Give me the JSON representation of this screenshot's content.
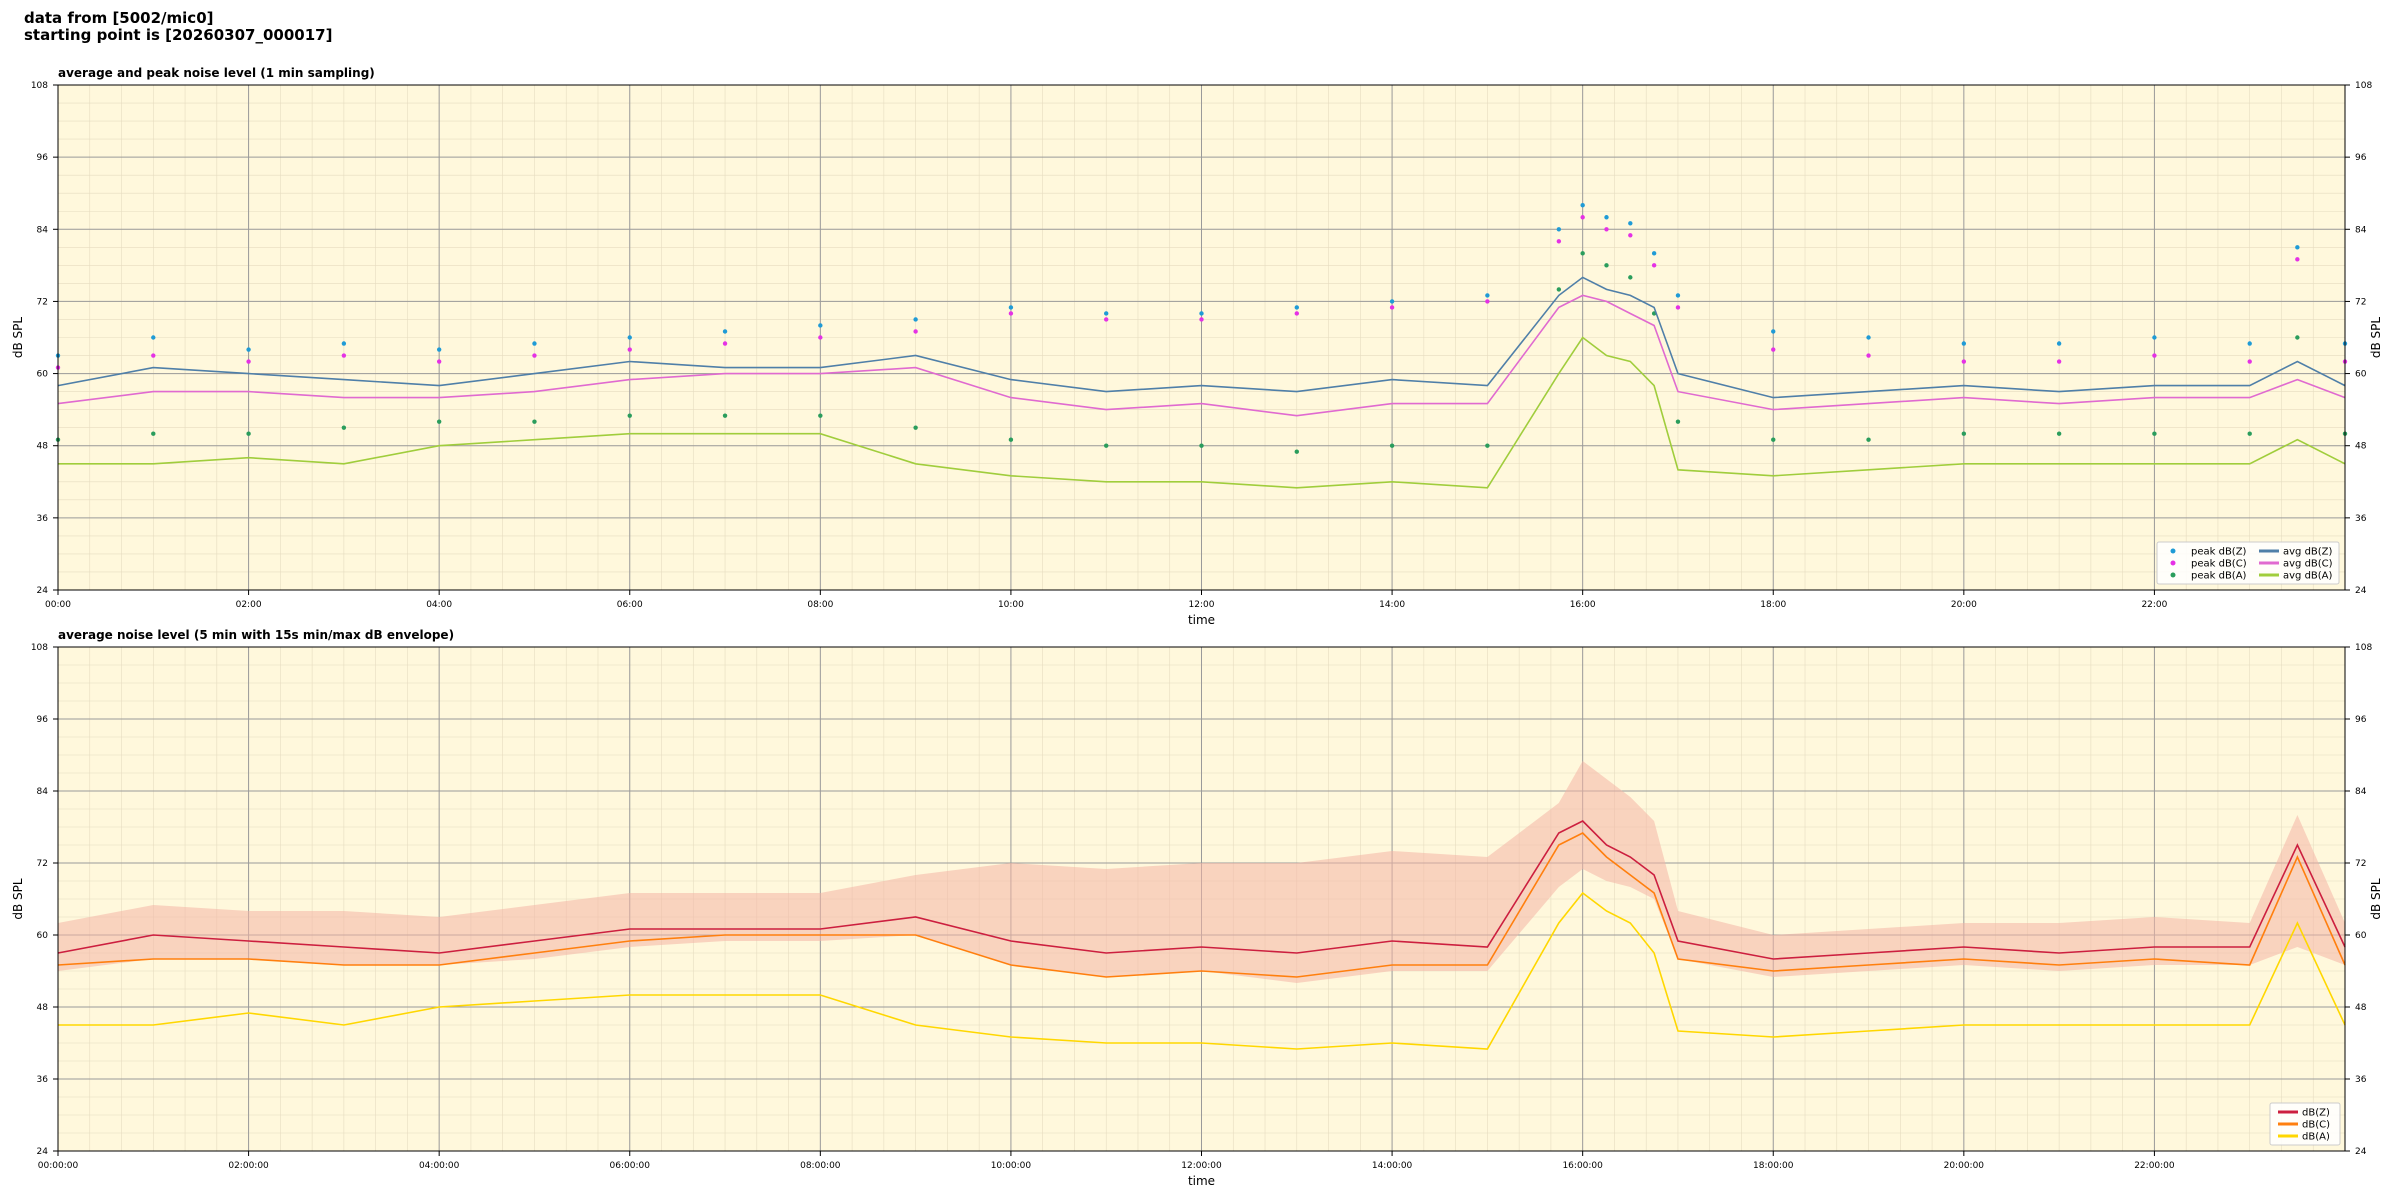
{
  "header": {
    "line1": "data from [5002/mic0]",
    "line2": "starting point is [20260307_000017]"
  },
  "chart_data": [
    {
      "type": "line",
      "title": "average and peak noise level (1 min sampling)",
      "xlabel": "time",
      "ylabel": "dB SPL",
      "xlim_hours": [
        0,
        24
      ],
      "ylim": [
        24,
        108
      ],
      "yticks": [
        24,
        36,
        48,
        60,
        72,
        84,
        96,
        108
      ],
      "xtick_labels": [
        "00:00",
        "02:00",
        "04:00",
        "06:00",
        "08:00",
        "10:00",
        "12:00",
        "14:00",
        "16:00",
        "18:00",
        "20:00",
        "22:00"
      ],
      "grid": true,
      "background": "#fff8dc",
      "legend_position": "lower-right",
      "series": [
        {
          "name": "peak dB(Z)",
          "kind": "scatter",
          "color": "#1f9bd6",
          "x": [
            0,
            1,
            2,
            3,
            4,
            5,
            6,
            7,
            8,
            9,
            10,
            11,
            12,
            13,
            14,
            15,
            15.75,
            16,
            16.25,
            16.5,
            16.75,
            17,
            18,
            19,
            20,
            21,
            22,
            23,
            23.5,
            24
          ],
          "y": [
            63,
            66,
            64,
            65,
            64,
            65,
            66,
            67,
            68,
            69,
            71,
            70,
            70,
            71,
            72,
            73,
            84,
            88,
            86,
            85,
            80,
            73,
            67,
            66,
            65,
            65,
            66,
            65,
            81,
            65
          ]
        },
        {
          "name": "peak dB(C)",
          "kind": "scatter",
          "color": "#e531e5",
          "x": [
            0,
            1,
            2,
            3,
            4,
            5,
            6,
            7,
            8,
            9,
            10,
            11,
            12,
            13,
            14,
            15,
            15.75,
            16,
            16.25,
            16.5,
            16.75,
            17,
            18,
            19,
            20,
            21,
            22,
            23,
            23.5,
            24
          ],
          "y": [
            61,
            63,
            62,
            63,
            62,
            63,
            64,
            65,
            66,
            67,
            70,
            69,
            69,
            70,
            71,
            72,
            82,
            86,
            84,
            83,
            78,
            71,
            64,
            63,
            62,
            62,
            63,
            62,
            79,
            62
          ]
        },
        {
          "name": "peak dB(A)",
          "kind": "scatter",
          "color": "#2a9d5c",
          "x": [
            0,
            1,
            2,
            3,
            4,
            5,
            6,
            7,
            8,
            9,
            10,
            11,
            12,
            13,
            14,
            15,
            15.75,
            16,
            16.25,
            16.5,
            16.75,
            17,
            18,
            19,
            20,
            21,
            22,
            23,
            23.5,
            24
          ],
          "y": [
            49,
            50,
            50,
            51,
            52,
            52,
            53,
            53,
            53,
            51,
            49,
            48,
            48,
            47,
            48,
            48,
            74,
            80,
            78,
            76,
            70,
            52,
            49,
            49,
            50,
            50,
            50,
            50,
            66,
            50
          ]
        },
        {
          "name": "avg dB(Z)",
          "kind": "line",
          "color": "#4f7fa8",
          "x": [
            0,
            1,
            2,
            3,
            4,
            5,
            6,
            7,
            8,
            9,
            10,
            11,
            12,
            13,
            14,
            15,
            15.75,
            16,
            16.25,
            16.5,
            16.75,
            17,
            18,
            19,
            20,
            21,
            22,
            23,
            23.5,
            24
          ],
          "y": [
            58,
            61,
            60,
            59,
            58,
            60,
            62,
            61,
            61,
            63,
            59,
            57,
            58,
            57,
            59,
            58,
            73,
            76,
            74,
            73,
            71,
            60,
            56,
            57,
            58,
            57,
            58,
            58,
            62,
            58
          ]
        },
        {
          "name": "avg dB(C)",
          "kind": "line",
          "color": "#e06ad0",
          "x": [
            0,
            1,
            2,
            3,
            4,
            5,
            6,
            7,
            8,
            9,
            10,
            11,
            12,
            13,
            14,
            15,
            15.75,
            16,
            16.25,
            16.5,
            16.75,
            17,
            18,
            19,
            20,
            21,
            22,
            23,
            23.5,
            24
          ],
          "y": [
            55,
            57,
            57,
            56,
            56,
            57,
            59,
            60,
            60,
            61,
            56,
            54,
            55,
            53,
            55,
            55,
            71,
            73,
            72,
            70,
            68,
            57,
            54,
            55,
            56,
            55,
            56,
            56,
            59,
            56
          ]
        },
        {
          "name": "avg dB(A)",
          "kind": "line",
          "color": "#a0cd3c",
          "x": [
            0,
            1,
            2,
            3,
            4,
            5,
            6,
            7,
            8,
            9,
            10,
            11,
            12,
            13,
            14,
            15,
            15.75,
            16,
            16.25,
            16.5,
            16.75,
            17,
            18,
            19,
            20,
            21,
            22,
            23,
            23.5,
            24
          ],
          "y": [
            45,
            45,
            46,
            45,
            48,
            49,
            50,
            50,
            50,
            45,
            43,
            42,
            42,
            41,
            42,
            41,
            60,
            66,
            63,
            62,
            58,
            44,
            43,
            44,
            45,
            45,
            45,
            45,
            49,
            45
          ]
        }
      ]
    },
    {
      "type": "line",
      "title": "average noise level (5 min with 15s min/max dB envelope)",
      "xlabel": "time",
      "ylabel": "dB SPL",
      "xlim_hours": [
        0,
        24
      ],
      "ylim": [
        24,
        108
      ],
      "yticks": [
        24,
        36,
        48,
        60,
        72,
        84,
        96,
        108
      ],
      "xtick_labels": [
        "00:00:00",
        "02:00:00",
        "04:00:00",
        "06:00:00",
        "08:00:00",
        "10:00:00",
        "12:00:00",
        "14:00:00",
        "16:00:00",
        "18:00:00",
        "20:00:00",
        "22:00:00"
      ],
      "grid": true,
      "background": "#fff8dc",
      "legend_position": "lower-right",
      "envelope": {
        "color": "#f4b4a6",
        "x": [
          0,
          1,
          2,
          3,
          4,
          5,
          6,
          7,
          8,
          9,
          10,
          11,
          12,
          13,
          14,
          15,
          15.75,
          16,
          16.25,
          16.5,
          16.75,
          17,
          18,
          19,
          20,
          21,
          22,
          23,
          23.5,
          24
        ],
        "min": [
          54,
          56,
          56,
          55,
          55,
          56,
          58,
          59,
          59,
          60,
          55,
          53,
          54,
          52,
          54,
          54,
          68,
          71,
          69,
          68,
          66,
          56,
          53,
          54,
          55,
          54,
          55,
          55,
          58,
          55
        ],
        "max": [
          62,
          65,
          64,
          64,
          63,
          65,
          67,
          67,
          67,
          70,
          72,
          71,
          72,
          72,
          74,
          73,
          82,
          89,
          86,
          83,
          79,
          64,
          60,
          61,
          62,
          62,
          63,
          62,
          80,
          62
        ]
      },
      "series": [
        {
          "name": "dB(Z)",
          "kind": "line",
          "color": "#cc1f3f",
          "x": [
            0,
            1,
            2,
            3,
            4,
            5,
            6,
            7,
            8,
            9,
            10,
            11,
            12,
            13,
            14,
            15,
            15.75,
            16,
            16.25,
            16.5,
            16.75,
            17,
            18,
            19,
            20,
            21,
            22,
            23,
            23.5,
            24
          ],
          "y": [
            57,
            60,
            59,
            58,
            57,
            59,
            61,
            61,
            61,
            63,
            59,
            57,
            58,
            57,
            59,
            58,
            77,
            79,
            75,
            73,
            70,
            59,
            56,
            57,
            58,
            57,
            58,
            58,
            75,
            58
          ]
        },
        {
          "name": "dB(C)",
          "kind": "line",
          "color": "#ff7f0e",
          "x": [
            0,
            1,
            2,
            3,
            4,
            5,
            6,
            7,
            8,
            9,
            10,
            11,
            12,
            13,
            14,
            15,
            15.75,
            16,
            16.25,
            16.5,
            16.75,
            17,
            18,
            19,
            20,
            21,
            22,
            23,
            23.5,
            24
          ],
          "y": [
            55,
            56,
            56,
            55,
            55,
            57,
            59,
            60,
            60,
            60,
            55,
            53,
            54,
            53,
            55,
            55,
            75,
            77,
            73,
            70,
            67,
            56,
            54,
            55,
            56,
            55,
            56,
            55,
            73,
            55
          ]
        },
        {
          "name": "dB(A)",
          "kind": "line",
          "color": "#ffd700",
          "x": [
            0,
            1,
            2,
            3,
            4,
            5,
            6,
            7,
            8,
            9,
            10,
            11,
            12,
            13,
            14,
            15,
            15.75,
            16,
            16.25,
            16.5,
            16.75,
            17,
            18,
            19,
            20,
            21,
            22,
            23,
            23.5,
            24
          ],
          "y": [
            45,
            45,
            47,
            45,
            48,
            49,
            50,
            50,
            50,
            45,
            43,
            42,
            42,
            41,
            42,
            41,
            62,
            67,
            64,
            62,
            57,
            44,
            43,
            44,
            45,
            45,
            45,
            45,
            62,
            45
          ]
        }
      ]
    }
  ]
}
